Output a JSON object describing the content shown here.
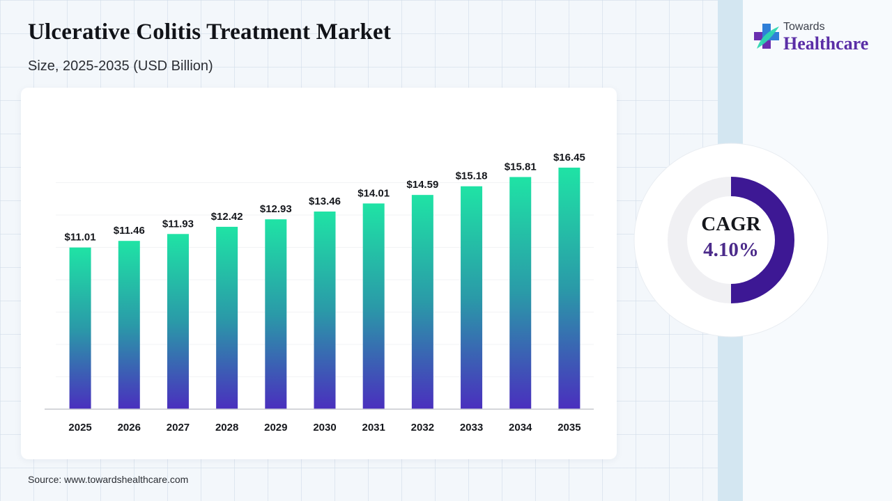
{
  "header": {
    "title": "Ulcerative Colitis Treatment Market",
    "subtitle": "Size, 2025-2035 (USD Billion)"
  },
  "logo": {
    "line1": "Towards",
    "line2": "Healthcare",
    "icon": "medical-cross-icon",
    "colors": {
      "cross_blue": "#2f7fd8",
      "cross_purple": "#6a2fb0",
      "leaf_teal": "#2ed6b0",
      "wordmark": "#5a2ea6"
    }
  },
  "chart_data": {
    "type": "bar",
    "categories": [
      "2025",
      "2026",
      "2027",
      "2028",
      "2029",
      "2030",
      "2031",
      "2032",
      "2033",
      "2034",
      "2035"
    ],
    "values": [
      11.01,
      11.46,
      11.93,
      12.42,
      12.93,
      13.46,
      14.01,
      14.59,
      15.18,
      15.81,
      16.45
    ],
    "value_labels": [
      "$11.01",
      "$11.46",
      "$11.93",
      "$12.42",
      "$12.93",
      "$13.46",
      "$14.01",
      "$14.59",
      "$15.18",
      "$15.81",
      "$16.45"
    ],
    "title": "",
    "xlabel": "",
    "ylabel": "",
    "ylim": [
      0,
      20
    ],
    "grid": false,
    "legend": "none",
    "bar_gradient": {
      "top": "#1fe3a5",
      "middle": "#2a9aa8",
      "bottom": "#4a2fbe"
    }
  },
  "cagr": {
    "label": "CAGR",
    "value": "4.10%",
    "ring_fraction": 0.5,
    "ring_color": "#3d1894",
    "track_color": "#f0f0f3"
  },
  "footer": {
    "source": "Source: www.towardshealthcare.com"
  }
}
